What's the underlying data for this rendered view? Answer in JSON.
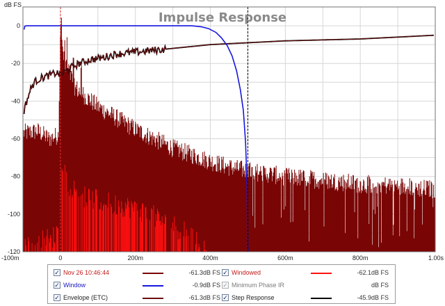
{
  "window": {
    "title": ""
  },
  "chart_data": {
    "type": "line",
    "title": "Impulse Response",
    "ylabel": "dB FS",
    "xlim": [
      -100,
      1000
    ],
    "ylim": [
      -120,
      10
    ],
    "x_ticks": [
      {
        "value": -100,
        "label": "-100m"
      },
      {
        "value": 0,
        "label": "0"
      },
      {
        "value": 200,
        "label": "200m"
      },
      {
        "value": 400,
        "label": "400m"
      },
      {
        "value": 600,
        "label": "600m"
      },
      {
        "value": 800,
        "label": "800m"
      },
      {
        "value": 1000,
        "label": "1.00s"
      }
    ],
    "y_ticks": [
      0,
      -20,
      -40,
      -60,
      -80,
      -100,
      -120
    ],
    "grid": true,
    "markers": [
      {
        "x": 0,
        "color": "#e83030",
        "style": "dashed"
      },
      {
        "x": 500,
        "color": "#000000",
        "style": "dashed"
      }
    ],
    "series": [
      {
        "name": "Window",
        "color": "#1515e0",
        "points": [
          [
            -97,
            -2
          ],
          [
            -95,
            -0.2
          ],
          [
            -90,
            0
          ],
          [
            0,
            0
          ],
          [
            350,
            0
          ],
          [
            375,
            -0.5
          ],
          [
            395,
            -1.5
          ],
          [
            415,
            -3.5
          ],
          [
            430,
            -6.5
          ],
          [
            445,
            -10.5
          ],
          [
            458,
            -16
          ],
          [
            470,
            -24
          ],
          [
            480,
            -34
          ],
          [
            488,
            -45
          ],
          [
            494,
            -62
          ],
          [
            498,
            -85
          ],
          [
            500,
            -120
          ]
        ]
      },
      {
        "name": "Step Response",
        "color": "#000000",
        "points": [
          [
            -97,
            -45
          ],
          [
            -90,
            -40
          ],
          [
            -80,
            -34
          ],
          [
            -70,
            -30
          ],
          [
            -55,
            -28
          ],
          [
            -40,
            -27
          ],
          [
            -25,
            -26
          ],
          [
            -10,
            -25
          ],
          [
            0,
            -26
          ],
          [
            15,
            -24
          ],
          [
            30,
            -22
          ],
          [
            50,
            -20
          ],
          [
            80,
            -18
          ],
          [
            110,
            -17
          ],
          [
            150,
            -15
          ],
          [
            200,
            -14
          ],
          [
            250,
            -13
          ],
          [
            300,
            -12
          ],
          [
            400,
            -10
          ],
          [
            500,
            -9
          ],
          [
            600,
            -8
          ],
          [
            700,
            -7.5
          ],
          [
            800,
            -7
          ],
          [
            900,
            -6
          ],
          [
            1000,
            -5
          ]
        ]
      },
      {
        "name": "Envelope (ETC)",
        "color": "#6b0c0c",
        "points": [
          [
            -97,
            -45
          ],
          [
            -90,
            -40
          ],
          [
            -80,
            -34
          ],
          [
            -70,
            -30
          ],
          [
            -55,
            -28
          ],
          [
            -40,
            -27
          ],
          [
            -25,
            -26
          ],
          [
            -10,
            -25
          ],
          [
            0,
            -26
          ],
          [
            15,
            -24
          ],
          [
            30,
            -22
          ],
          [
            50,
            -20
          ],
          [
            80,
            -18
          ],
          [
            110,
            -17
          ],
          [
            150,
            -15
          ],
          [
            200,
            -14
          ],
          [
            250,
            -13
          ],
          [
            300,
            -12
          ],
          [
            400,
            -10
          ],
          [
            500,
            -9
          ],
          [
            600,
            -8
          ],
          [
            700,
            -7.5
          ],
          [
            800,
            -7
          ],
          [
            900,
            -6
          ],
          [
            1000,
            -5
          ]
        ]
      },
      {
        "name": "Nov 26 10:46:44",
        "color": "#7a0505",
        "envelope": [
          [
            -100,
            -59
          ],
          [
            -60,
            -58
          ],
          [
            -30,
            -62
          ],
          [
            -5,
            -60
          ],
          [
            0,
            -5
          ],
          [
            10,
            -20
          ],
          [
            40,
            -35
          ],
          [
            100,
            -45
          ],
          [
            200,
            -57
          ],
          [
            300,
            -67
          ],
          [
            400,
            -74
          ],
          [
            450,
            -77
          ],
          [
            500,
            -79
          ],
          [
            600,
            -82
          ],
          [
            700,
            -84
          ],
          [
            800,
            -86
          ],
          [
            900,
            -87
          ],
          [
            1000,
            -89
          ]
        ]
      },
      {
        "name": "Windowed",
        "color": "#ff1010",
        "envelope": [
          [
            -100,
            -120
          ],
          [
            -5,
            -112
          ],
          [
            0,
            -70
          ],
          [
            20,
            -85
          ],
          [
            60,
            -92
          ],
          [
            120,
            -95
          ],
          [
            200,
            -98
          ],
          [
            300,
            -107
          ],
          [
            350,
            -113
          ],
          [
            380,
            -118
          ],
          [
            400,
            -120
          ]
        ]
      }
    ]
  },
  "legend": [
    {
      "label": "Nov 26 10:46:44",
      "value": "-61.3dB FS",
      "checked": true,
      "label_color": "#c41a1a",
      "swatch": "#7a0505"
    },
    {
      "label": "Windowed",
      "value": "-62.1dB FS",
      "checked": true,
      "label_color": "#c41a1a",
      "swatch": "#ff1010"
    },
    {
      "label": "Window",
      "value": "-0.9dB FS",
      "checked": true,
      "label_color": "#1515c0",
      "swatch": "#1515e0"
    },
    {
      "label": "Minimum Phase IR",
      "value": "dB FS",
      "checked": true,
      "dim": true,
      "label_color": "#7a7a7a",
      "swatch": ""
    },
    {
      "label": "Envelope (ETC)",
      "value": "-61.3dB FS",
      "checked": true,
      "label_color": "#222222",
      "swatch": "#6b0c0c"
    },
    {
      "label": "Step Response",
      "value": "-45.9dB FS",
      "checked": true,
      "label_color": "#222222",
      "swatch": "#000000"
    }
  ]
}
